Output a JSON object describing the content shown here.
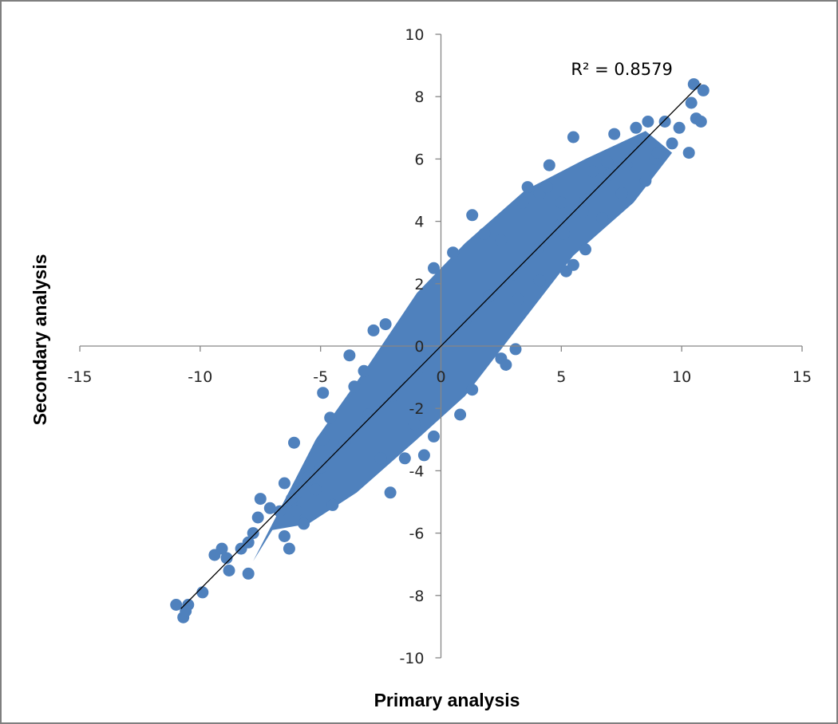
{
  "chart_data": {
    "type": "scatter",
    "title": "",
    "xlabel": "Primary analysis",
    "ylabel": "Secondary analysis",
    "xlim": [
      -15,
      15
    ],
    "ylim": [
      -10,
      10
    ],
    "x_ticks": [
      -15,
      -10,
      -5,
      0,
      5,
      10,
      15
    ],
    "y_ticks": [
      -10,
      -8,
      -6,
      -4,
      -2,
      0,
      2,
      4,
      6,
      8,
      10
    ],
    "x_tick_labels": [
      "-15",
      "-10",
      "-5",
      "0",
      "5",
      "10",
      "15"
    ],
    "y_tick_labels": [
      "-10",
      "-8",
      "-6",
      "-4",
      "-2",
      "0",
      "2",
      "4",
      "6",
      "8",
      "10"
    ],
    "grid": false,
    "legend": "none",
    "marker_color": "#4F81BD",
    "trendline_color": "#000000",
    "annotation": "R² = 0.8579",
    "trendline": {
      "slope": 0.78,
      "intercept": 0.0,
      "x_range": [
        -10.8,
        10.8
      ]
    },
    "series": [
      {
        "points": [
          [
            -11.0,
            -8.3
          ],
          [
            -10.7,
            -8.7
          ],
          [
            -10.5,
            -8.3
          ],
          [
            -10.6,
            -8.5
          ],
          [
            -9.9,
            -7.9
          ],
          [
            -9.4,
            -6.7
          ],
          [
            -9.1,
            -6.5
          ],
          [
            -8.8,
            -7.2
          ],
          [
            -8.9,
            -6.8
          ],
          [
            -8.3,
            -6.5
          ],
          [
            -8.0,
            -7.3
          ],
          [
            -8.0,
            -6.3
          ],
          [
            -7.8,
            -6.0
          ],
          [
            -7.6,
            -5.5
          ],
          [
            -7.5,
            -4.9
          ],
          [
            -7.1,
            -5.2
          ],
          [
            -6.7,
            -5.3
          ],
          [
            -6.5,
            -6.1
          ],
          [
            -6.3,
            -6.5
          ],
          [
            -6.5,
            -4.4
          ],
          [
            -6.2,
            -4.9
          ],
          [
            -6.0,
            -5.3
          ],
          [
            -6.1,
            -3.1
          ],
          [
            -5.7,
            -5.7
          ],
          [
            -5.5,
            -4.2
          ],
          [
            -5.2,
            -4.6
          ],
          [
            -4.9,
            -3.0
          ],
          [
            -4.6,
            -2.3
          ],
          [
            -4.9,
            -1.5
          ],
          [
            -4.5,
            -5.1
          ],
          [
            -3.8,
            -0.3
          ],
          [
            -3.6,
            -1.3
          ],
          [
            -3.2,
            -0.8
          ],
          [
            -2.8,
            0.5
          ],
          [
            -2.3,
            0.7
          ],
          [
            -2.5,
            -3.6
          ],
          [
            -2.1,
            -4.7
          ],
          [
            -1.5,
            -3.6
          ],
          [
            -1.1,
            -2.5
          ],
          [
            -0.7,
            -3.5
          ],
          [
            -0.3,
            -2.9
          ],
          [
            -0.3,
            2.5
          ],
          [
            0.5,
            3.0
          ],
          [
            0.8,
            -2.2
          ],
          [
            1.3,
            -1.4
          ],
          [
            1.3,
            4.2
          ],
          [
            1.8,
            3.6
          ],
          [
            2.5,
            -0.4
          ],
          [
            2.5,
            3.4
          ],
          [
            2.7,
            -0.6
          ],
          [
            3.1,
            -0.1
          ],
          [
            3.4,
            4.6
          ],
          [
            3.6,
            5.1
          ],
          [
            3.2,
            1.5
          ],
          [
            4.1,
            2.1
          ],
          [
            4.1,
            4.9
          ],
          [
            4.4,
            5.1
          ],
          [
            4.5,
            5.8
          ],
          [
            5.0,
            4.6
          ],
          [
            5.2,
            2.4
          ],
          [
            5.1,
            3.6
          ],
          [
            5.5,
            2.6
          ],
          [
            5.9,
            4.3
          ],
          [
            5.5,
            6.7
          ],
          [
            6.0,
            3.1
          ],
          [
            6.3,
            5.6
          ],
          [
            6.7,
            4.1
          ],
          [
            6.9,
            5.9
          ],
          [
            7.0,
            5.5
          ],
          [
            7.2,
            6.8
          ],
          [
            7.5,
            4.9
          ],
          [
            7.7,
            5.8
          ],
          [
            8.1,
            7.0
          ],
          [
            8.5,
            5.3
          ],
          [
            8.6,
            7.2
          ],
          [
            8.9,
            6.0
          ],
          [
            9.0,
            6.2
          ],
          [
            9.3,
            7.2
          ],
          [
            9.6,
            6.5
          ],
          [
            9.9,
            7.0
          ],
          [
            10.3,
            6.2
          ],
          [
            10.4,
            7.8
          ],
          [
            10.5,
            8.4
          ],
          [
            10.6,
            7.3
          ],
          [
            10.8,
            7.2
          ],
          [
            10.9,
            8.2
          ],
          [
            -3.0,
            -2.2
          ],
          [
            -2.0,
            -1.6
          ],
          [
            -1.0,
            -0.8
          ],
          [
            0.0,
            0.0
          ],
          [
            1.0,
            0.8
          ],
          [
            2.0,
            1.6
          ],
          [
            3.0,
            2.3
          ],
          [
            4.0,
            3.1
          ],
          [
            -4.0,
            -3.1
          ],
          [
            -5.0,
            -3.9
          ],
          [
            5.0,
            3.9
          ],
          [
            6.0,
            4.7
          ],
          [
            -6.0,
            -4.7
          ],
          [
            7.0,
            5.5
          ]
        ]
      }
    ]
  }
}
